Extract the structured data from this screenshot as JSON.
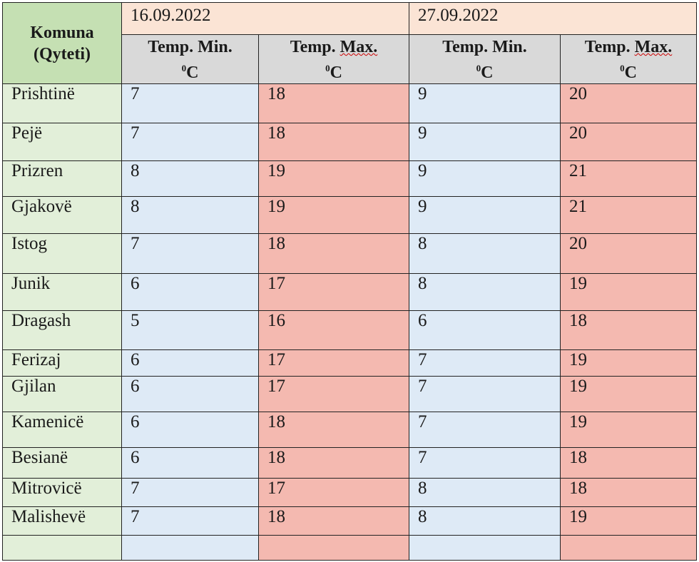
{
  "header": {
    "city_col": [
      "Komuna",
      "(Qyteti)"
    ],
    "dates": [
      "16.09.2022",
      "27.09.2022"
    ],
    "min_label": "Temp. Min.",
    "max_label_a": "Temp. ",
    "max_label_b": "Max.",
    "unit_sup": "0",
    "unit": "C"
  },
  "colors": {
    "header_green": "#c5e0b3",
    "date_bg": "#fbe4d5",
    "subheader_bg": "#d9d9d9",
    "city_bg": "#e2efd9",
    "min_bg": "#deeaf6",
    "max_bg": "#f4b9b0"
  },
  "rows": [
    {
      "city": "Prishtinë",
      "v": [
        "7",
        "18",
        "9",
        "20"
      ]
    },
    {
      "city": "Pejë",
      "v": [
        "7",
        "18",
        "9",
        "20"
      ]
    },
    {
      "city": "Prizren",
      "v": [
        "8",
        "19",
        "9",
        "21"
      ]
    },
    {
      "city": "Gjakovë",
      "v": [
        "8",
        "19",
        "9",
        "21"
      ]
    },
    {
      "city": "Istog",
      "v": [
        "7",
        "18",
        "8",
        "20"
      ]
    },
    {
      "city": "Junik",
      "v": [
        "6",
        "17",
        "8",
        "19"
      ]
    },
    {
      "city": "Dragash",
      "v": [
        "5",
        "16",
        "6",
        "18"
      ]
    },
    {
      "city": "Ferizaj",
      "v": [
        "6",
        "17",
        "7",
        "19"
      ]
    },
    {
      "city": "Gjilan",
      "v": [
        "6",
        "17",
        "7",
        "19"
      ]
    },
    {
      "city": "Kamenicë",
      "v": [
        "6",
        "18",
        "7",
        "19"
      ]
    },
    {
      "city": "Besianë",
      "v": [
        "6",
        "18",
        "7",
        "18"
      ]
    },
    {
      "city": "Mitrovicë",
      "v": [
        "7",
        "17",
        "8",
        "18"
      ]
    },
    {
      "city": "Malishevë",
      "v": [
        "7",
        "18",
        "8",
        "19"
      ]
    },
    {
      "city": "",
      "v": [
        "",
        "",
        "",
        ""
      ]
    }
  ]
}
